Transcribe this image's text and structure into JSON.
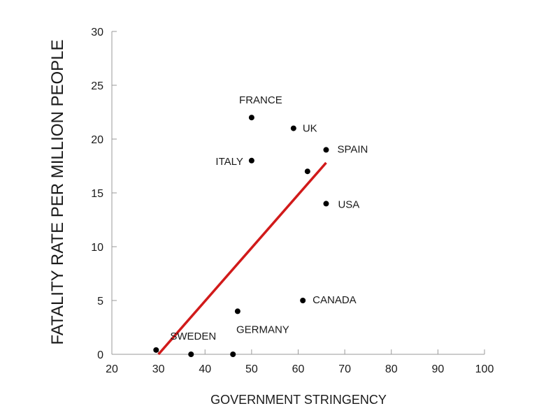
{
  "chart_data": {
    "type": "scatter",
    "title": "",
    "xlabel": "GOVERNMENT STRINGENCY",
    "ylabel": "FATALITY RATE PER MILLION PEOPLE",
    "xlim": [
      20,
      100
    ],
    "ylim": [
      0,
      30
    ],
    "x_ticks": [
      "20",
      "30",
      "40",
      "50",
      "60",
      "70",
      "80",
      "90",
      "100"
    ],
    "y_ticks": [
      "0",
      "5",
      "10",
      "15",
      "20",
      "25",
      "30"
    ],
    "grid": false,
    "points": [
      {
        "x": 50,
        "y": 22,
        "label": "FRANCE"
      },
      {
        "x": 59,
        "y": 21,
        "label": "UK"
      },
      {
        "x": 66,
        "y": 19,
        "label": "SPAIN"
      },
      {
        "x": 50,
        "y": 18,
        "label": "ITALY"
      },
      {
        "x": 62,
        "y": 17,
        "label": ""
      },
      {
        "x": 66,
        "y": 14,
        "label": "USA"
      },
      {
        "x": 61,
        "y": 5,
        "label": "CANADA"
      },
      {
        "x": 47,
        "y": 4,
        "label": "GERMANY"
      },
      {
        "x": 29.5,
        "y": 0.4,
        "label": "SWEDEN"
      },
      {
        "x": 37,
        "y": 0,
        "label": ""
      },
      {
        "x": 46,
        "y": 0,
        "label": ""
      }
    ],
    "trendline": {
      "x": [
        30,
        66
      ],
      "y": [
        0,
        17.8
      ],
      "color": "#d11a1a"
    },
    "point_color": "#000000"
  }
}
